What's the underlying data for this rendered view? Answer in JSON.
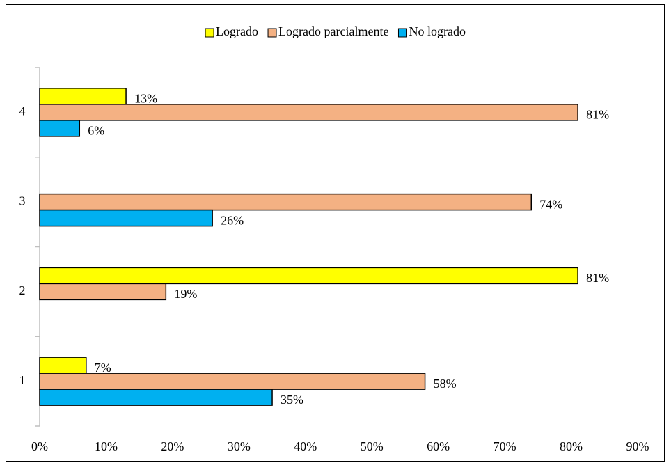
{
  "chart_data": {
    "type": "bar",
    "orientation": "horizontal",
    "categories": [
      "1",
      "2",
      "3",
      "4"
    ],
    "series": [
      {
        "name": "Logrado",
        "color": "#ffff00",
        "values": [
          7,
          81,
          null,
          13
        ],
        "value_labels": [
          "7%",
          "81%",
          null,
          "13%"
        ]
      },
      {
        "name": "Logrado parcialmente",
        "color": "#f4b183",
        "values": [
          58,
          19,
          74,
          81
        ],
        "value_labels": [
          "58%",
          "19%",
          "74%",
          "81%"
        ]
      },
      {
        "name": "No logrado",
        "color": "#00b0f0",
        "values": [
          35,
          null,
          26,
          6
        ],
        "value_labels": [
          "35%",
          null,
          "26%",
          "6%"
        ]
      }
    ],
    "xlim": [
      0,
      90
    ],
    "xticks": [
      {
        "value": 0,
        "label": "0%"
      },
      {
        "value": 10,
        "label": "10%"
      },
      {
        "value": 20,
        "label": "20%"
      },
      {
        "value": 30,
        "label": "30%"
      },
      {
        "value": 40,
        "label": "40%"
      },
      {
        "value": 50,
        "label": "50%"
      },
      {
        "value": 60,
        "label": "60%"
      },
      {
        "value": 70,
        "label": "70%"
      },
      {
        "value": 80,
        "label": "80%"
      },
      {
        "value": 90,
        "label": "90%"
      }
    ],
    "grid": false,
    "legend": "top"
  }
}
